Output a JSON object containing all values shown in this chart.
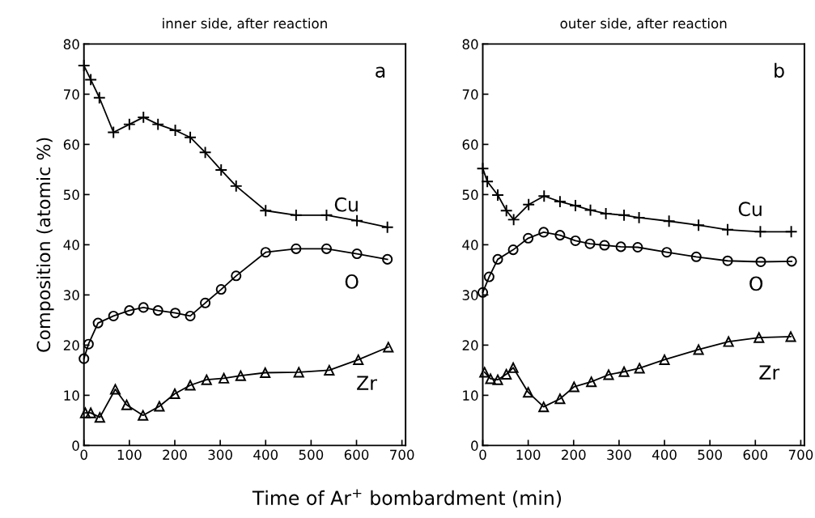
{
  "chart_data": [
    {
      "type": "line",
      "title": "inner side, after reaction",
      "ylabel": "Composition (atomic %)",
      "xlabel": "Time of Ar$^{+}$ bombardment (min)",
      "annotations": [
        "a"
      ],
      "xlim": [
        0,
        708
      ],
      "ylim": [
        0,
        80
      ],
      "xticks": [
        0,
        100,
        200,
        300,
        400,
        500,
        600,
        700
      ],
      "yticks": [
        0,
        10,
        20,
        30,
        40,
        50,
        60,
        70,
        80
      ],
      "grid": false,
      "legend": false,
      "series": [
        {
          "name": "Cu",
          "color": "#000000",
          "marker": "cross",
          "x": [
            0,
            15,
            34,
            65,
            100,
            131,
            163,
            201,
            234,
            267,
            302,
            335,
            400,
            467,
            534,
            601,
            668
          ],
          "values": [
            75.7,
            72.9,
            69.3,
            62.4,
            64.0,
            65.4,
            64.0,
            62.8,
            61.4,
            58.4,
            54.9,
            51.7,
            46.8,
            45.9,
            45.9,
            44.8,
            43.5
          ]
        },
        {
          "name": "O",
          "color": "#000000",
          "marker": "circle",
          "x": [
            0,
            10,
            31,
            65,
            100,
            131,
            163,
            201,
            234,
            267,
            302,
            335,
            400,
            467,
            534,
            601,
            668
          ],
          "values": [
            17.3,
            20.2,
            24.4,
            25.8,
            26.9,
            27.5,
            26.9,
            26.4,
            25.8,
            28.4,
            31.1,
            33.8,
            38.5,
            39.2,
            39.2,
            38.2,
            37.1
          ]
        },
        {
          "name": "Zr",
          "color": "#000000",
          "marker": "triangle",
          "x": [
            3,
            15,
            35,
            69,
            94,
            130,
            166,
            200,
            234,
            270,
            308,
            345,
            399,
            473,
            540,
            604,
            670
          ],
          "values": [
            6.5,
            6.5,
            5.6,
            11.2,
            8.1,
            6.0,
            7.8,
            10.3,
            12.0,
            13.1,
            13.4,
            13.9,
            14.5,
            14.6,
            15.0,
            17.1,
            19.6
          ]
        }
      ]
    },
    {
      "type": "line",
      "title": "outer side, after reaction",
      "annotations": [
        "b"
      ],
      "xlim": [
        0,
        708
      ],
      "ylim": [
        0,
        80
      ],
      "xticks": [
        0,
        100,
        200,
        300,
        400,
        500,
        600,
        700
      ],
      "yticks": [
        0,
        10,
        20,
        30,
        40,
        50,
        60,
        70,
        80
      ],
      "grid": false,
      "legend": false,
      "series": [
        {
          "name": "Cu",
          "color": "#000000",
          "marker": "cross",
          "x": [
            0,
            10,
            33,
            52,
            68,
            101,
            135,
            170,
            204,
            237,
            271,
            311,
            344,
            410,
            475,
            539,
            611,
            679
          ],
          "values": [
            55.2,
            52.6,
            49.9,
            46.8,
            45.0,
            48.0,
            49.7,
            48.6,
            47.8,
            46.9,
            46.2,
            45.9,
            45.4,
            44.7,
            43.9,
            43.0,
            42.6,
            42.6
          ]
        },
        {
          "name": "O",
          "color": "#000000",
          "marker": "circle",
          "x": [
            0,
            14,
            33,
            67,
            100,
            134,
            170,
            204,
            236,
            268,
            304,
            341,
            405,
            470,
            539,
            612,
            680
          ],
          "values": [
            30.5,
            33.6,
            37.1,
            39.0,
            41.3,
            42.5,
            41.9,
            40.8,
            40.2,
            39.9,
            39.6,
            39.5,
            38.5,
            37.6,
            36.8,
            36.6,
            36.7
          ]
        },
        {
          "name": "Zr",
          "color": "#000000",
          "marker": "triangle",
          "x": [
            4,
            17,
            33,
            52,
            67,
            100,
            134,
            170,
            201,
            239,
            277,
            311,
            345,
            400,
            475,
            541,
            608,
            678
          ],
          "values": [
            14.6,
            13.3,
            13.1,
            14.2,
            15.5,
            10.6,
            7.7,
            9.3,
            11.7,
            12.7,
            14.1,
            14.7,
            15.4,
            17.1,
            19.1,
            20.7,
            21.5,
            21.7
          ]
        }
      ]
    }
  ]
}
